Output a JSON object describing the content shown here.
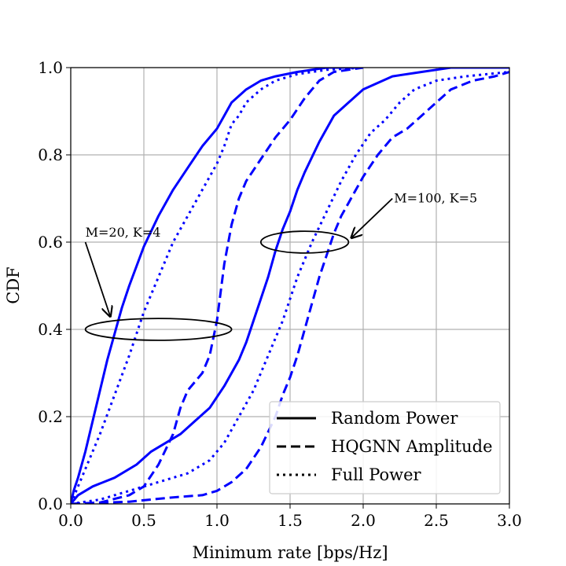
{
  "chart_data": {
    "type": "line",
    "xlabel": "Minimum rate [bps/Hz]",
    "ylabel": "CDF",
    "xlim": [
      0,
      3.0
    ],
    "ylim": [
      0,
      1.0
    ],
    "x_ticks": [
      "0.0",
      "0.5",
      "1.0",
      "1.5",
      "2.0",
      "2.5",
      "3.0"
    ],
    "y_ticks": [
      "0.0",
      "0.2",
      "0.4",
      "0.6",
      "0.8",
      "1.0"
    ],
    "grid": true,
    "legend_position": "bottom-right",
    "line_color": "#0000ff",
    "legend": [
      {
        "label": "Random Power",
        "style": "solid"
      },
      {
        "label": "HQGNN Amplitude",
        "style": "dashed"
      },
      {
        "label": "Full Power",
        "style": "dotted"
      }
    ],
    "series": [
      {
        "group": "M=20, K=4",
        "style": "solid",
        "points": [
          [
            0,
            0
          ],
          [
            0.02,
            0.03
          ],
          [
            0.05,
            0.06
          ],
          [
            0.1,
            0.12
          ],
          [
            0.15,
            0.19
          ],
          [
            0.2,
            0.26
          ],
          [
            0.25,
            0.33
          ],
          [
            0.3,
            0.39
          ],
          [
            0.35,
            0.45
          ],
          [
            0.4,
            0.5
          ],
          [
            0.5,
            0.59
          ],
          [
            0.6,
            0.66
          ],
          [
            0.7,
            0.72
          ],
          [
            0.8,
            0.77
          ],
          [
            0.9,
            0.82
          ],
          [
            1.0,
            0.86
          ],
          [
            1.05,
            0.89
          ],
          [
            1.1,
            0.92
          ],
          [
            1.2,
            0.95
          ],
          [
            1.3,
            0.97
          ],
          [
            1.4,
            0.98
          ],
          [
            1.55,
            0.99
          ],
          [
            1.75,
            1.0
          ],
          [
            2.0,
            1.0
          ]
        ]
      },
      {
        "group": "M=20, K=4",
        "style": "dotted",
        "points": [
          [
            0,
            0
          ],
          [
            0.05,
            0.04
          ],
          [
            0.1,
            0.08
          ],
          [
            0.2,
            0.16
          ],
          [
            0.3,
            0.25
          ],
          [
            0.4,
            0.34
          ],
          [
            0.5,
            0.44
          ],
          [
            0.6,
            0.52
          ],
          [
            0.7,
            0.6
          ],
          [
            0.8,
            0.66
          ],
          [
            0.9,
            0.72
          ],
          [
            1.0,
            0.78
          ],
          [
            1.05,
            0.82
          ],
          [
            1.1,
            0.87
          ],
          [
            1.15,
            0.89
          ],
          [
            1.2,
            0.92
          ],
          [
            1.3,
            0.95
          ],
          [
            1.4,
            0.97
          ],
          [
            1.55,
            0.985
          ],
          [
            1.75,
            0.995
          ],
          [
            2.0,
            1.0
          ]
        ]
      },
      {
        "group": "M=20, K=4",
        "style": "dashed",
        "points": [
          [
            0,
            0
          ],
          [
            0.2,
            0.003
          ],
          [
            0.4,
            0.02
          ],
          [
            0.5,
            0.04
          ],
          [
            0.6,
            0.09
          ],
          [
            0.7,
            0.16
          ],
          [
            0.75,
            0.22
          ],
          [
            0.8,
            0.26
          ],
          [
            0.85,
            0.28
          ],
          [
            0.9,
            0.3
          ],
          [
            0.95,
            0.34
          ],
          [
            1.0,
            0.42
          ],
          [
            1.05,
            0.55
          ],
          [
            1.1,
            0.64
          ],
          [
            1.15,
            0.7
          ],
          [
            1.2,
            0.74
          ],
          [
            1.3,
            0.79
          ],
          [
            1.4,
            0.84
          ],
          [
            1.5,
            0.88
          ],
          [
            1.6,
            0.93
          ],
          [
            1.7,
            0.97
          ],
          [
            1.8,
            0.99
          ],
          [
            1.9,
            0.995
          ],
          [
            2.0,
            1.0
          ]
        ]
      },
      {
        "group": "M=100, K=5",
        "style": "solid",
        "points": [
          [
            0,
            0
          ],
          [
            0.05,
            0.02
          ],
          [
            0.15,
            0.04
          ],
          [
            0.3,
            0.06
          ],
          [
            0.45,
            0.09
          ],
          [
            0.55,
            0.12
          ],
          [
            0.65,
            0.14
          ],
          [
            0.75,
            0.16
          ],
          [
            0.85,
            0.19
          ],
          [
            0.95,
            0.22
          ],
          [
            1.05,
            0.27
          ],
          [
            1.15,
            0.33
          ],
          [
            1.2,
            0.37
          ],
          [
            1.25,
            0.42
          ],
          [
            1.3,
            0.47
          ],
          [
            1.35,
            0.52
          ],
          [
            1.4,
            0.58
          ],
          [
            1.45,
            0.63
          ],
          [
            1.5,
            0.67
          ],
          [
            1.55,
            0.72
          ],
          [
            1.6,
            0.76
          ],
          [
            1.7,
            0.83
          ],
          [
            1.8,
            0.89
          ],
          [
            1.9,
            0.92
          ],
          [
            2.0,
            0.95
          ],
          [
            2.2,
            0.98
          ],
          [
            2.4,
            0.99
          ],
          [
            2.6,
            1.0
          ],
          [
            3.0,
            1.0
          ]
        ]
      },
      {
        "group": "M=100, K=5",
        "style": "dotted",
        "points": [
          [
            0,
            0
          ],
          [
            0.2,
            0.01
          ],
          [
            0.4,
            0.03
          ],
          [
            0.6,
            0.05
          ],
          [
            0.8,
            0.07
          ],
          [
            0.95,
            0.1
          ],
          [
            1.05,
            0.14
          ],
          [
            1.15,
            0.2
          ],
          [
            1.25,
            0.26
          ],
          [
            1.35,
            0.34
          ],
          [
            1.45,
            0.42
          ],
          [
            1.55,
            0.52
          ],
          [
            1.65,
            0.6
          ],
          [
            1.75,
            0.67
          ],
          [
            1.85,
            0.74
          ],
          [
            1.95,
            0.8
          ],
          [
            2.05,
            0.85
          ],
          [
            2.15,
            0.88
          ],
          [
            2.25,
            0.92
          ],
          [
            2.35,
            0.95
          ],
          [
            2.5,
            0.97
          ],
          [
            2.7,
            0.98
          ],
          [
            3.0,
            0.99
          ]
        ]
      },
      {
        "group": "M=100, K=5",
        "style": "dashed",
        "points": [
          [
            0,
            0
          ],
          [
            0.4,
            0.005
          ],
          [
            0.7,
            0.015
          ],
          [
            0.9,
            0.02
          ],
          [
            1.0,
            0.03
          ],
          [
            1.1,
            0.05
          ],
          [
            1.2,
            0.08
          ],
          [
            1.3,
            0.13
          ],
          [
            1.4,
            0.2
          ],
          [
            1.45,
            0.25
          ],
          [
            1.5,
            0.29
          ],
          [
            1.55,
            0.34
          ],
          [
            1.6,
            0.4
          ],
          [
            1.65,
            0.46
          ],
          [
            1.7,
            0.52
          ],
          [
            1.75,
            0.57
          ],
          [
            1.8,
            0.62
          ],
          [
            1.85,
            0.66
          ],
          [
            1.9,
            0.69
          ],
          [
            1.95,
            0.72
          ],
          [
            2.0,
            0.75
          ],
          [
            2.1,
            0.8
          ],
          [
            2.2,
            0.84
          ],
          [
            2.3,
            0.86
          ],
          [
            2.4,
            0.89
          ],
          [
            2.5,
            0.92
          ],
          [
            2.6,
            0.95
          ],
          [
            2.75,
            0.97
          ],
          [
            2.9,
            0.98
          ],
          [
            3.0,
            0.99
          ]
        ]
      }
    ],
    "annotations": [
      {
        "text": "M=20, K=4",
        "ellipse_center": [
          0.6,
          0.4
        ],
        "ellipse_radii": [
          0.5,
          0.025
        ],
        "arrow_from": [
          0.1,
          0.6
        ],
        "arrow_to": [
          0.27,
          0.43
        ]
      },
      {
        "text": "M=100, K=5",
        "ellipse_center": [
          1.6,
          0.6
        ],
        "ellipse_radii": [
          0.3,
          0.025
        ],
        "arrow_from": [
          2.2,
          0.7
        ],
        "arrow_to": [
          1.92,
          0.61
        ]
      }
    ]
  }
}
